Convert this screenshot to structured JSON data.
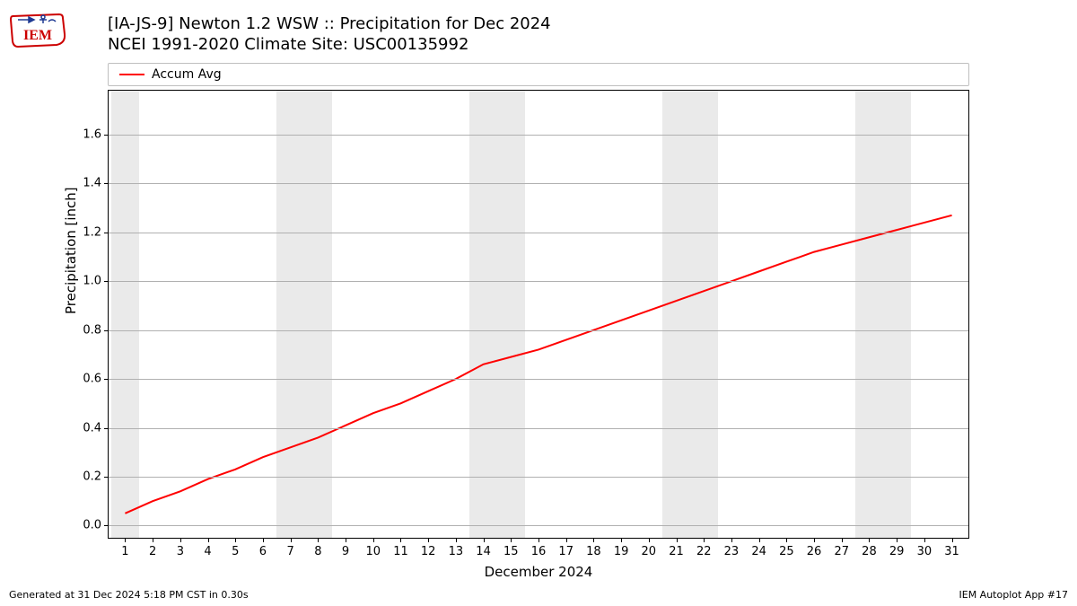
{
  "logo": {
    "text": "IEM",
    "stroke_color": "#cc0000",
    "accent_color": "#1f3a93"
  },
  "title": {
    "line1": "[IA-JS-9] Newton 1.2 WSW :: Precipitation for Dec 2024",
    "line2": "NCEI 1991-2020 Climate Site: USC00135992",
    "fontsize": 18
  },
  "legend": {
    "items": [
      {
        "label": "Accum Avg",
        "color": "#ff0000"
      }
    ],
    "border_color": "#bfbfbf"
  },
  "chart": {
    "type": "line",
    "ylabel": "Precipitation [inch]",
    "xlabel": "December 2024",
    "label_fontsize": 15,
    "tick_fontsize": 13,
    "background_color": "#ffffff",
    "grid_color": "#b0b0b0",
    "border_color": "#000000",
    "weekend_band_color": "#eaeaea",
    "xlim": [
      0.4,
      31.6
    ],
    "ylim": [
      -0.05,
      1.78
    ],
    "xticks": [
      1,
      2,
      3,
      4,
      5,
      6,
      7,
      8,
      9,
      10,
      11,
      12,
      13,
      14,
      15,
      16,
      17,
      18,
      19,
      20,
      21,
      22,
      23,
      24,
      25,
      26,
      27,
      28,
      29,
      30,
      31
    ],
    "yticks": [
      0.0,
      0.2,
      0.4,
      0.6,
      0.8,
      1.0,
      1.2,
      1.4,
      1.6
    ],
    "weekend_bands": [
      [
        1,
        1
      ],
      [
        7,
        8
      ],
      [
        14,
        15
      ],
      [
        21,
        22
      ],
      [
        28,
        29
      ]
    ],
    "series": [
      {
        "name": "Accum Avg",
        "color": "#ff0000",
        "line_width": 2,
        "x": [
          1,
          2,
          3,
          4,
          5,
          6,
          7,
          8,
          9,
          10,
          11,
          12,
          13,
          14,
          15,
          16,
          17,
          18,
          19,
          20,
          21,
          22,
          23,
          24,
          25,
          26,
          27,
          28,
          29,
          30,
          31
        ],
        "y": [
          0.05,
          0.1,
          0.14,
          0.19,
          0.23,
          0.28,
          0.32,
          0.36,
          0.41,
          0.46,
          0.5,
          0.55,
          0.6,
          0.66,
          0.69,
          0.72,
          0.76,
          0.8,
          0.84,
          0.88,
          0.92,
          0.96,
          1.0,
          1.04,
          1.08,
          1.12,
          1.15,
          1.18,
          1.21,
          1.24,
          1.27
        ]
      }
    ]
  },
  "footer": {
    "left": "Generated at 31 Dec 2024 5:18 PM CST in 0.30s",
    "right": "IEM Autoplot App #17",
    "fontsize": 11
  }
}
